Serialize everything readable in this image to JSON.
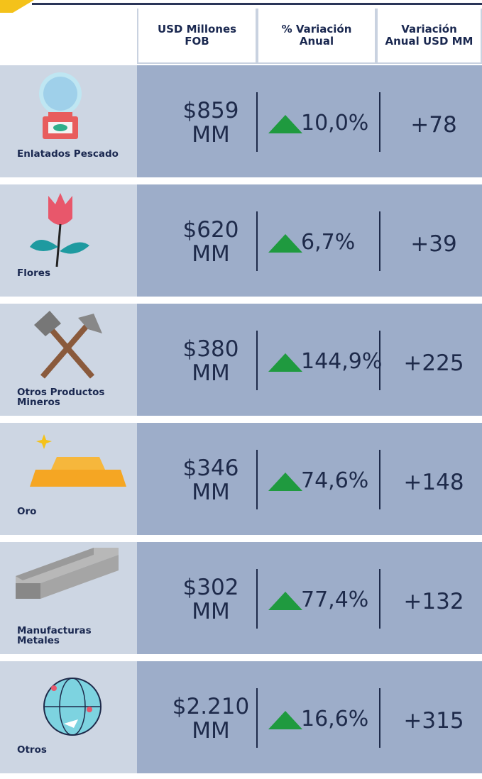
{
  "header": {
    "columns": [
      "USD Millones FOB",
      "% Variación Anual",
      "Variación Anual USD MM"
    ]
  },
  "rows": [
    {
      "label": "Enlatados Pescado",
      "value": "$859",
      "unit": "MM",
      "variation": "10,0%",
      "change": "+78"
    },
    {
      "label": "Flores",
      "value": "$620",
      "unit": "MM",
      "variation": "6,7%",
      "change": "+39"
    },
    {
      "label": "Otros Productos Mineros",
      "value": "$380",
      "unit": "MM",
      "variation": "144,9%",
      "change": "+225"
    },
    {
      "label": "Oro",
      "value": "$346",
      "unit": "MM",
      "variation": "74,6%",
      "change": "+148"
    },
    {
      "label": "Manufacturas Metales",
      "value": "$302",
      "unit": "MM",
      "variation": "77,4%",
      "change": "+132"
    },
    {
      "label": "Otros",
      "value": "$2.210",
      "unit": "MM",
      "variation": "16,6%",
      "change": "+315"
    }
  ]
}
